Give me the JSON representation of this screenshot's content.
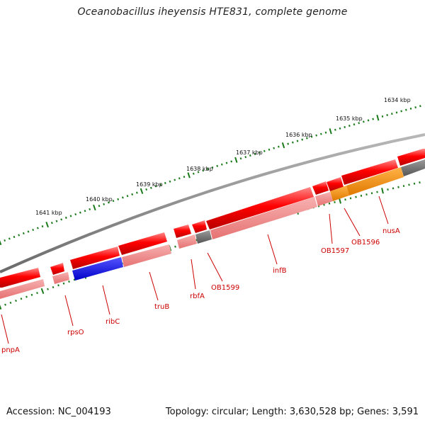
{
  "header": {
    "title": "Oceanobacillus iheyensis HTE831, complete genome"
  },
  "footer": {
    "accession": "Accession: NC_004193",
    "topology": "Topology: circular; Length: 3,630,528 bp; Genes: 3,591"
  },
  "ruler": {
    "labels": [
      "1641 kbp",
      "1640 kbp",
      "1639 kbp",
      "1638 kbp",
      "1637 kbp",
      "1636 kbp",
      "1635 kbp",
      "1634 kbp"
    ]
  },
  "genes": {
    "labels": [
      "pnpA",
      "rpsO",
      "ribC",
      "truB",
      "rbfA",
      "OB1599",
      "infB",
      "OB1597",
      "OB1596",
      "nusA"
    ]
  },
  "colors": {
    "gene_strand": "#ff0000",
    "gene_highlight_default": "#f08080",
    "ribC": "#0000dd",
    "OB1599": "#666666",
    "OB1597": "#f08080",
    "OB1596": "#ff8c00",
    "nusA": "#ff8c00",
    "backbone": "#808080",
    "ticks": "#1a7a1a",
    "label_text": "#cc0000"
  }
}
